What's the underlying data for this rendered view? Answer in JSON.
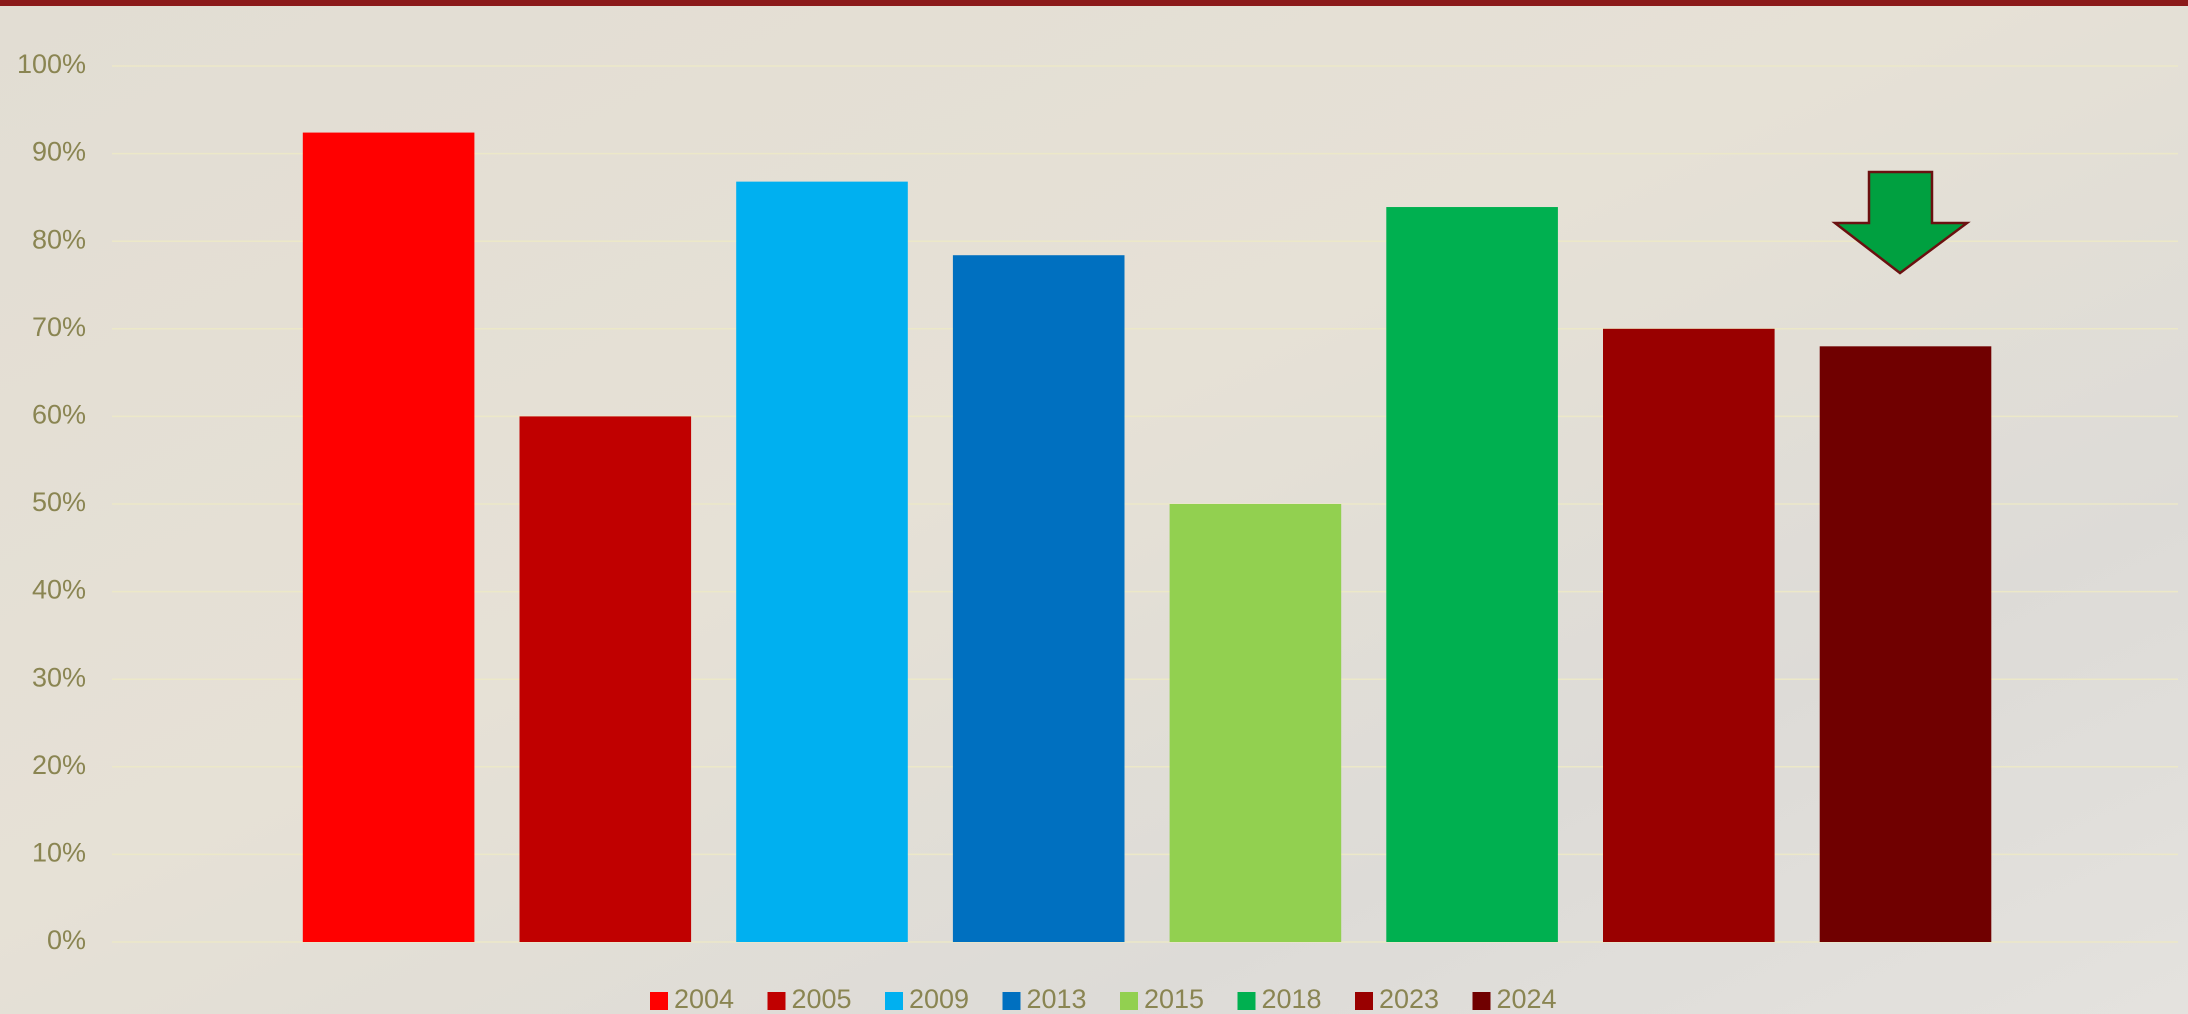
{
  "chart_data": {
    "type": "bar",
    "categories": [
      null
    ],
    "series": [
      {
        "name": "2004",
        "color": "#ff0000",
        "values": [
          92.4
        ]
      },
      {
        "name": "2005",
        "color": "#c00000",
        "values": [
          60
        ]
      },
      {
        "name": "2009",
        "color": "#00b0f0",
        "values": [
          86.8
        ]
      },
      {
        "name": "2013",
        "color": "#0070c0",
        "values": [
          78.4
        ]
      },
      {
        "name": "2015",
        "color": "#92d050",
        "values": [
          50
        ]
      },
      {
        "name": "2018",
        "color": "#00b050",
        "values": [
          83.9
        ]
      },
      {
        "name": "2023",
        "color": "#990000",
        "values": [
          70
        ]
      },
      {
        "name": "2024",
        "color": "#700000",
        "values": [
          68
        ]
      }
    ],
    "ylim": [
      0,
      100
    ],
    "yticks": [
      {
        "value": 0,
        "label": "0%"
      },
      {
        "value": 10,
        "label": "10%"
      },
      {
        "value": 20,
        "label": "20%"
      },
      {
        "value": 30,
        "label": "30%"
      },
      {
        "value": 40,
        "label": "40%"
      },
      {
        "value": 50,
        "label": "50%"
      },
      {
        "value": 60,
        "label": "60%"
      },
      {
        "value": 70,
        "label": "70%"
      },
      {
        "value": 80,
        "label": "80%"
      },
      {
        "value": 90,
        "label": "90%"
      },
      {
        "value": 100,
        "label": "100%"
      }
    ],
    "grid": true,
    "legend": "bottom"
  }
}
